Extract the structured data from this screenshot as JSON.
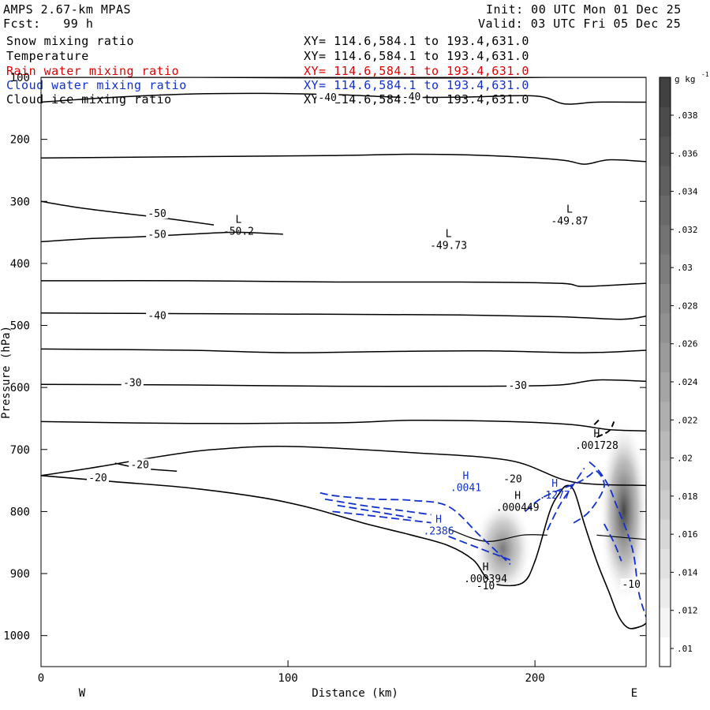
{
  "header": {
    "model": "AMPS 2.67-km MPAS",
    "fcst": "Fcst:   99 h",
    "init": "Init: 00 UTC Mon 01 Dec 25",
    "valid": "Valid: 03 UTC Fri 05 Dec 25"
  },
  "fields": [
    {
      "name": "Snow mixing ratio",
      "xy": "XY= 114.6,584.1 to 193.4,631.0",
      "color": "#000000"
    },
    {
      "name": "Temperature",
      "xy": "XY= 114.6,584.1 to 193.4,631.0",
      "color": "#000000"
    },
    {
      "name": "Rain water mixing ratio",
      "xy": "XY= 114.6,584.1 to 193.4,631.0",
      "color": "#e00000"
    },
    {
      "name": "Cloud water mixing ratio",
      "xy": "XY= 114.6,584.1 to 193.4,631.0",
      "color": "#1030d0"
    },
    {
      "name": "Cloud ice mixing ratio",
      "xy": "XY= 114.6,584.1 to 193.4,631.0",
      "color": "#000000"
    }
  ],
  "chart_data": {
    "type": "cross-section",
    "xlabel": "Distance (km)",
    "ylabel": "Pressure (hPa)",
    "xlim": [
      0,
      245
    ],
    "ylim": [
      1050,
      100
    ],
    "xticks": [
      0,
      100,
      200
    ],
    "yticks": [
      100,
      200,
      300,
      400,
      500,
      600,
      700,
      800,
      900,
      1000
    ],
    "xtick_labels": [
      "0",
      "100",
      "200"
    ],
    "ytick_labels": [
      "100",
      "200",
      "300",
      "400",
      "500",
      "600",
      "700",
      "800",
      "900",
      "1000"
    ],
    "west_label": "W",
    "east_label": "E",
    "colorbar": {
      "units": "g kg",
      "units_exp": "-1",
      "ticks": [
        ".038",
        ".036",
        ".034",
        ".032",
        ".03",
        ".028",
        ".026",
        ".024",
        ".022",
        ".02",
        ".018",
        ".016",
        ".014",
        ".012",
        ".01"
      ],
      "steps": [
        "#ffffff",
        "#f5f5f5",
        "#ebebeb",
        "#e1e1e1",
        "#d7d7d7",
        "#cdcdcd",
        "#c3c3c3",
        "#b9b9b9",
        "#afafaf",
        "#a5a5a5",
        "#9b9b9b",
        "#919191",
        "#878787",
        "#7d7d7d",
        "#737373",
        "#696969",
        "#5f5f5f",
        "#555555",
        "#4b4b4b",
        "#414141"
      ]
    },
    "temperature_labels": [
      {
        "text": "-50",
        "x": 47,
        "p": 320
      },
      {
        "text": "-50",
        "x": 47,
        "p": 354
      },
      {
        "text": "-40",
        "x": 47,
        "p": 485
      },
      {
        "text": "-30",
        "x": 37,
        "p": 593
      },
      {
        "text": "-30",
        "x": 193,
        "p": 597
      },
      {
        "text": "-20",
        "x": 40,
        "p": 725
      },
      {
        "text": "-20",
        "x": 23,
        "p": 746
      },
      {
        "text": "-20",
        "x": 191,
        "p": 748
      },
      {
        "text": "-10",
        "x": 180,
        "p": 920
      },
      {
        "text": "-10",
        "x": 239,
        "p": 918
      },
      {
        "text": "-40",
        "x": 116,
        "p": 133
      },
      {
        "text": "-40",
        "x": 150,
        "p": 132
      }
    ],
    "extrema": [
      {
        "kind": "L",
        "value": "-50.2",
        "x": 80,
        "p": 345,
        "color": "#000000"
      },
      {
        "kind": "L",
        "value": "-49.73",
        "x": 165,
        "p": 368,
        "color": "#000000"
      },
      {
        "kind": "L",
        "value": "-49.87",
        "x": 214,
        "p": 328,
        "color": "#000000"
      },
      {
        "kind": "H",
        "value": ".001728",
        "x": 225,
        "p": 690,
        "color": "#000000"
      },
      {
        "kind": "H",
        "value": ".000449",
        "x": 193,
        "p": 790,
        "color": "#000000"
      },
      {
        "kind": "H",
        "value": ".000394",
        "x": 180,
        "p": 905,
        "color": "#000000"
      },
      {
        "kind": "H",
        "value": ".0041",
        "x": 172,
        "p": 758,
        "color": "#1030d0"
      },
      {
        "kind": "H",
        "value": ".1277",
        "x": 208,
        "p": 770,
        "color": "#1030d0"
      },
      {
        "kind": "H",
        "value": ".2386",
        "x": 161,
        "p": 828,
        "color": "#1030d0"
      }
    ],
    "terrain": [
      [
        0,
        742
      ],
      [
        30,
        752
      ],
      [
        60,
        762
      ],
      [
        90,
        778
      ],
      [
        110,
        795
      ],
      [
        130,
        818
      ],
      [
        150,
        838
      ],
      [
        165,
        855
      ],
      [
        175,
        878
      ],
      [
        180,
        905
      ],
      [
        185,
        918
      ],
      [
        195,
        915
      ],
      [
        200,
        880
      ],
      [
        206,
        800
      ],
      [
        210,
        770
      ],
      [
        213,
        758
      ],
      [
        216,
        768
      ],
      [
        220,
        820
      ],
      [
        225,
        880
      ],
      [
        230,
        930
      ],
      [
        234,
        970
      ],
      [
        238,
        988
      ],
      [
        243,
        985
      ],
      [
        245,
        980
      ]
    ],
    "temperature_isotherms": [
      [
        [
          0,
          100
        ],
        [
          60,
          100
        ],
        [
          120,
          101
        ],
        [
          175,
          101
        ],
        [
          205,
          100
        ],
        [
          245,
          100
        ]
      ],
      [
        [
          0,
          140
        ],
        [
          30,
          132
        ],
        [
          60,
          127
        ],
        [
          90,
          126
        ],
        [
          120,
          128
        ],
        [
          145,
          132
        ],
        [
          170,
          132
        ],
        [
          200,
          130
        ],
        [
          212,
          143
        ],
        [
          225,
          140
        ],
        [
          245,
          140
        ]
      ],
      [
        [
          0,
          230
        ],
        [
          60,
          228
        ],
        [
          120,
          226
        ],
        [
          150,
          224
        ],
        [
          180,
          226
        ],
        [
          210,
          233
        ],
        [
          220,
          240
        ],
        [
          230,
          233
        ],
        [
          245,
          236
        ]
      ],
      [
        [
          0,
          300
        ],
        [
          15,
          310
        ],
        [
          35,
          320
        ],
        [
          50,
          327
        ],
        [
          70,
          338
        ]
      ],
      [
        [
          0,
          365
        ],
        [
          20,
          360
        ],
        [
          40,
          357
        ],
        [
          60,
          353
        ],
        [
          75,
          350
        ],
        [
          83,
          350
        ],
        [
          98,
          353
        ]
      ],
      [
        [
          0,
          428
        ],
        [
          60,
          428
        ],
        [
          120,
          430
        ],
        [
          170,
          430
        ],
        [
          210,
          432
        ],
        [
          220,
          437
        ],
        [
          245,
          432
        ]
      ],
      [
        [
          0,
          480
        ],
        [
          60,
          481
        ],
        [
          120,
          482
        ],
        [
          170,
          483
        ],
        [
          210,
          486
        ],
        [
          235,
          490
        ],
        [
          245,
          485
        ]
      ],
      [
        [
          0,
          538
        ],
        [
          60,
          540
        ],
        [
          100,
          544
        ],
        [
          140,
          542
        ],
        [
          180,
          541
        ],
        [
          220,
          544
        ],
        [
          245,
          540
        ]
      ],
      [
        [
          0,
          595
        ],
        [
          60,
          596
        ],
        [
          120,
          598
        ],
        [
          180,
          598
        ],
        [
          210,
          596
        ],
        [
          225,
          588
        ],
        [
          245,
          590
        ]
      ],
      [
        [
          0,
          655
        ],
        [
          60,
          658
        ],
        [
          120,
          657
        ],
        [
          150,
          653
        ],
        [
          190,
          655
        ],
        [
          215,
          660
        ],
        [
          230,
          668
        ],
        [
          245,
          670
        ]
      ],
      [
        [
          0,
          742
        ],
        [
          20,
          730
        ],
        [
          50,
          710
        ],
        [
          70,
          700
        ],
        [
          100,
          695
        ],
        [
          150,
          705
        ],
        [
          190,
          718
        ],
        [
          215,
          752
        ],
        [
          245,
          758
        ]
      ],
      [
        [
          30,
          722
        ],
        [
          40,
          730
        ],
        [
          55,
          735
        ]
      ]
    ],
    "boundary_layer_lines": [
      [
        [
          165,
          828
        ],
        [
          180,
          848
        ],
        [
          195,
          838
        ],
        [
          205,
          838
        ]
      ],
      [
        [
          225,
          838
        ],
        [
          245,
          845
        ]
      ]
    ],
    "cloud_ice_contours": [
      [
        [
          225,
          680
        ],
        [
          230,
          670
        ],
        [
          232,
          655
        ]
      ],
      [
        [
          224,
          660
        ],
        [
          226,
          652
        ]
      ]
    ],
    "cloud_water_contours": [
      [
        [
          113,
          770
        ],
        [
          120,
          775
        ],
        [
          135,
          780
        ],
        [
          150,
          782
        ],
        [
          165,
          792
        ],
        [
          178,
          840
        ],
        [
          190,
          885
        ]
      ],
      [
        [
          115,
          780
        ],
        [
          130,
          790
        ],
        [
          145,
          798
        ],
        [
          158,
          805
        ]
      ],
      [
        [
          120,
          790
        ],
        [
          135,
          800
        ],
        [
          150,
          810
        ]
      ],
      [
        [
          118,
          800
        ],
        [
          130,
          805
        ],
        [
          145,
          812
        ],
        [
          158,
          818
        ]
      ],
      [
        [
          165,
          840
        ],
        [
          178,
          860
        ],
        [
          190,
          878
        ]
      ],
      [
        [
          196,
          800
        ],
        [
          202,
          780
        ],
        [
          210,
          765
        ],
        [
          218,
          752
        ],
        [
          222,
          742
        ],
        [
          225,
          735
        ],
        [
          228,
          760
        ],
        [
          222,
          800
        ],
        [
          215,
          820
        ]
      ],
      [
        [
          205,
          830
        ],
        [
          210,
          790
        ],
        [
          215,
          760
        ],
        [
          220,
          730
        ]
      ],
      [
        [
          222,
          720
        ],
        [
          226,
          735
        ],
        [
          230,
          760
        ],
        [
          233,
          790
        ],
        [
          237,
          830
        ],
        [
          240,
          870
        ],
        [
          242,
          930
        ],
        [
          245,
          970
        ]
      ],
      [
        [
          228,
          820
        ],
        [
          232,
          850
        ],
        [
          235,
          880
        ]
      ]
    ],
    "snow_blobs": [
      {
        "x": 187,
        "p": 860,
        "rx": 12,
        "rp": 80,
        "opacity": 0.65
      },
      {
        "x": 236,
        "p": 800,
        "rx": 10,
        "rp": 150,
        "opacity": 0.9
      }
    ]
  }
}
